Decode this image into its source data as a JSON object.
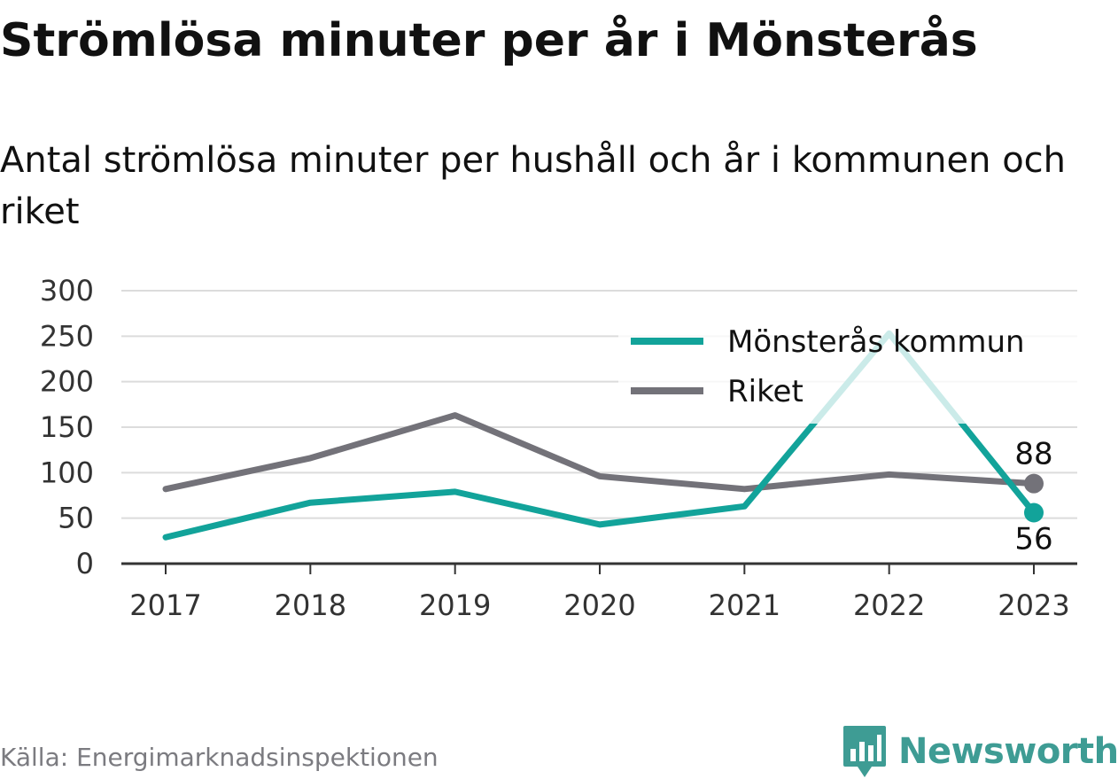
{
  "chart_data": {
    "type": "line",
    "title": "Strömlösa minuter per år i Mönsterås",
    "subtitle": "Antal strömlösa minuter per hushåll och år i kommunen och riket",
    "categories": [
      "2017",
      "2018",
      "2019",
      "2020",
      "2021",
      "2022",
      "2023"
    ],
    "y_ticks": [
      "0",
      "50",
      "100",
      "150",
      "200",
      "250",
      "300"
    ],
    "ylim": [
      0,
      300
    ],
    "grid": true,
    "legend_position": "top-right",
    "series": [
      {
        "name": "Mönsterås kommun",
        "values": [
          29,
          67,
          79,
          43,
          63,
          253,
          56
        ],
        "color": "#12a39a",
        "end_label": "56"
      },
      {
        "name": "Riket",
        "values": [
          82,
          116,
          163,
          96,
          82,
          98,
          88
        ],
        "color": "#737279",
        "end_label": "88"
      }
    ]
  },
  "source": "Källa: Energimarknadsinspektionen",
  "brand": {
    "name": "Newsworthy",
    "icon": "bar-chart-logo-icon",
    "color": "#3e9c94"
  }
}
